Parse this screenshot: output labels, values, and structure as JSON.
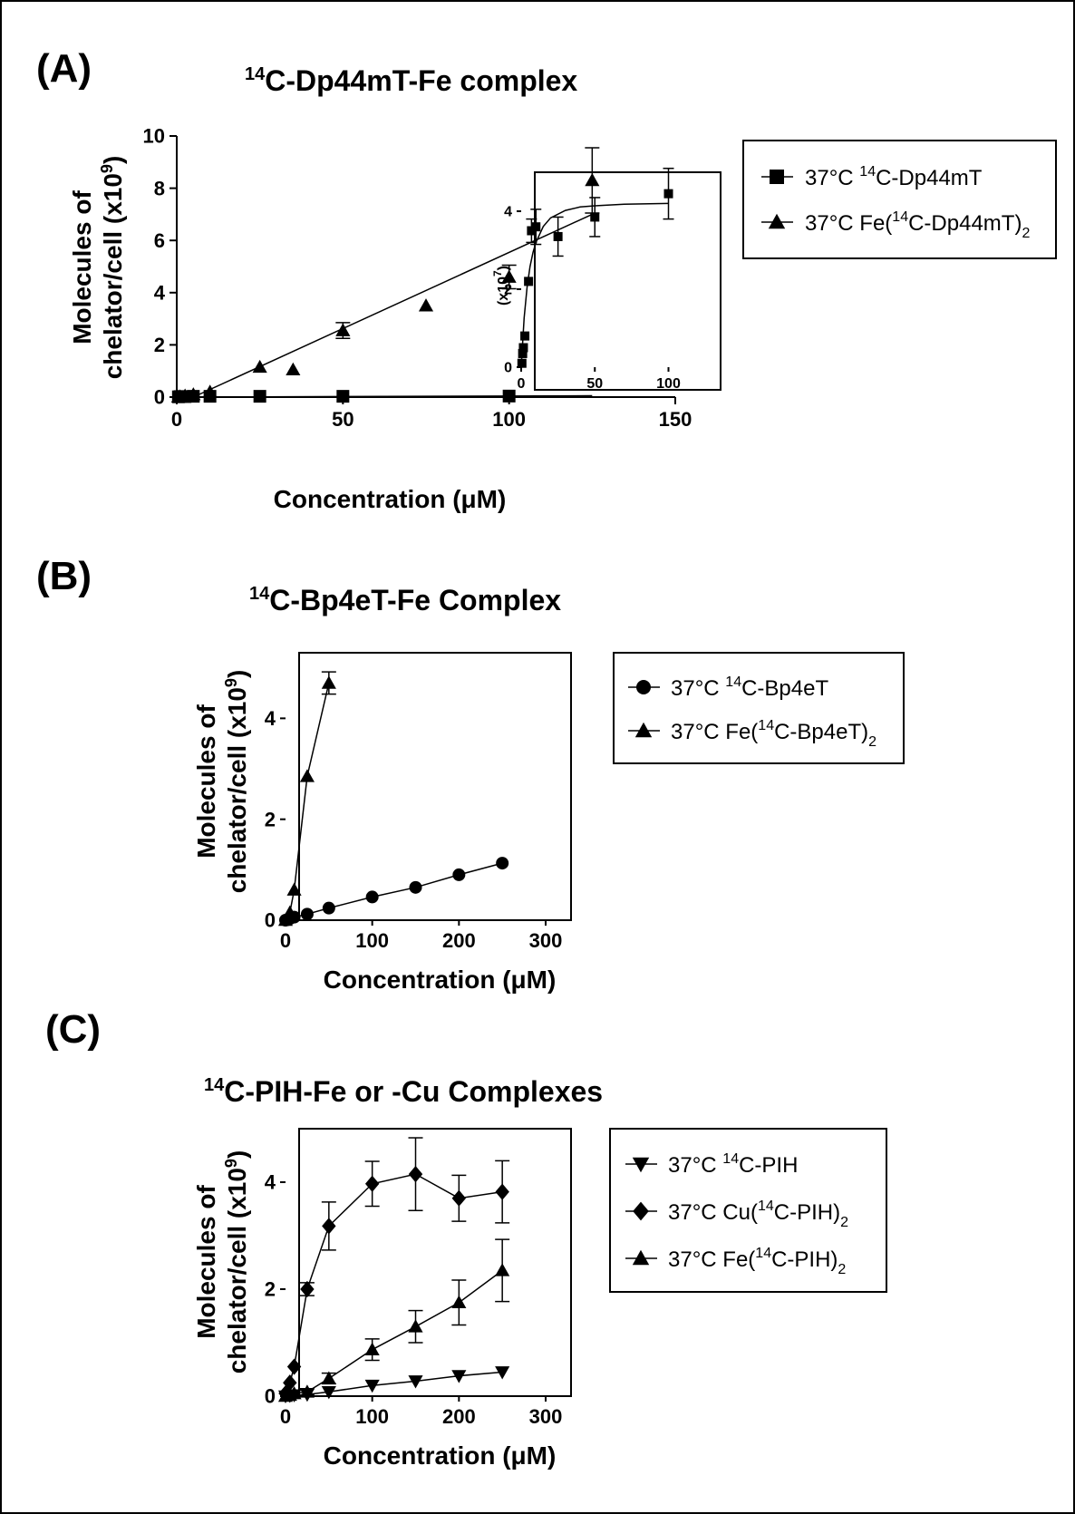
{
  "chart_data": [
    {
      "panel": "(A)",
      "type": "scatter",
      "title": {
        "pre": "14",
        "main": "C-Dp44mT-Fe complex"
      },
      "xlabel": "Concentration (μM)",
      "ylabel_line1": "Molecules of",
      "ylabel_line2": "chelator/cell (x10",
      "ylabel_exp": "9",
      "ylabel_end": ")",
      "xlim": [
        0,
        150
      ],
      "ylim": [
        0,
        10
      ],
      "xticks": [
        0,
        50,
        100,
        150
      ],
      "yticks": [
        0,
        2,
        4,
        6,
        8,
        10
      ],
      "series": [
        {
          "marker": "square",
          "legend": {
            "a": "37°C ",
            "sup1": "14",
            "b": "C-Dp44mT",
            "sub": "",
            "c": ""
          },
          "points": [
            [
              0.5,
              0.01
            ],
            [
              1,
              0.02
            ],
            [
              2.5,
              0.02
            ],
            [
              5,
              0.03
            ],
            [
              10,
              0.03
            ],
            [
              25,
              0.03
            ],
            [
              50,
              0.03
            ],
            [
              100,
              0.04
            ]
          ],
          "errors": [
            0,
            0,
            0,
            0,
            0,
            0,
            0,
            0
          ],
          "fit": [
            [
              0,
              0
            ],
            [
              125,
              0.05
            ]
          ]
        },
        {
          "marker": "triangle-up",
          "legend": {
            "a": "37°C Fe(",
            "sup1": "14",
            "b": "C-Dp44mT)",
            "sub": "2",
            "c": ""
          },
          "points": [
            [
              0.5,
              0.01
            ],
            [
              1,
              0.02
            ],
            [
              2.5,
              0.05
            ],
            [
              5,
              0.1
            ],
            [
              10,
              0.2
            ],
            [
              25,
              1.15
            ],
            [
              35,
              1.05
            ],
            [
              50,
              2.55
            ],
            [
              75,
              3.5
            ],
            [
              100,
              4.6
            ],
            [
              125,
              8.3
            ]
          ],
          "errors": [
            0,
            0,
            0,
            0,
            0,
            0,
            0,
            0.3,
            0,
            0.45,
            1.25
          ],
          "fit": [
            [
              5,
              0
            ],
            [
              125,
              7.0
            ]
          ]
        }
      ],
      "inset": {
        "ylabel": "(x10",
        "ylabel_exp": "7",
        "ylabel_end": ")",
        "xlim": [
          0,
          120
        ],
        "ylim": [
          0,
          5
        ],
        "xticks": [
          0,
          50,
          100
        ],
        "yticks": [
          0,
          2,
          4
        ],
        "series": [
          {
            "marker": "square",
            "points": [
              [
                0.5,
                0.1
              ],
              [
                1,
                0.35
              ],
              [
                1.5,
                0.5
              ],
              [
                2.5,
                0.8
              ],
              [
                5,
                2.2
              ],
              [
                7,
                3.5
              ],
              [
                10,
                3.6
              ],
              [
                25,
                3.35
              ],
              [
                50,
                3.85
              ],
              [
                100,
                4.45
              ]
            ],
            "errors": [
              0,
              0,
              0,
              0,
              0,
              0.3,
              0.45,
              0.5,
              0.5,
              0.65
            ],
            "fit": [
              [
                0,
                0
              ],
              [
                2,
                1.26
              ],
              [
                4,
                2.05
              ],
              [
                6,
                2.58
              ],
              [
                8,
                2.94
              ],
              [
                10,
                3.2
              ],
              [
                15,
                3.61
              ],
              [
                20,
                3.83
              ],
              [
                30,
                4.02
              ],
              [
                40,
                4.11
              ],
              [
                50,
                4.14
              ],
              [
                70,
                4.18
              ],
              [
                100,
                4.2
              ]
            ]
          }
        ]
      }
    },
    {
      "panel": "(B)",
      "type": "line",
      "title": {
        "pre": "14",
        "main": "C-Bp4eT-Fe Complex"
      },
      "xlabel": "Concentration (μM)",
      "ylabel_line1": "Molecules of",
      "ylabel_line2": "chelator/cell (x10",
      "ylabel_exp": "9",
      "ylabel_end": ")",
      "xlim": [
        0,
        300
      ],
      "ylim": [
        0,
        5.3
      ],
      "xticks": [
        0,
        100,
        200,
        300
      ],
      "yticks": [
        0,
        2,
        4
      ],
      "series": [
        {
          "marker": "circle",
          "legend": {
            "a": "37°C ",
            "sup1": "14",
            "b": "C-Bp4eT",
            "sub": "",
            "c": ""
          },
          "points": [
            [
              0,
              0
            ],
            [
              2.5,
              0.01
            ],
            [
              5,
              0.03
            ],
            [
              10,
              0.06
            ],
            [
              25,
              0.12
            ],
            [
              50,
              0.24
            ],
            [
              100,
              0.46
            ],
            [
              150,
              0.65
            ],
            [
              200,
              0.9
            ],
            [
              250,
              1.13
            ]
          ],
          "errors": [
            0,
            0,
            0,
            0,
            0,
            0,
            0,
            0,
            0,
            0
          ]
        },
        {
          "marker": "triangle-up",
          "legend": {
            "a": "37°C Fe(",
            "sup1": "14",
            "b": "C-Bp4eT)",
            "sub": "2",
            "c": ""
          },
          "points": [
            [
              0,
              0
            ],
            [
              2.5,
              0.05
            ],
            [
              5,
              0.15
            ],
            [
              10,
              0.6
            ],
            [
              25,
              2.85
            ],
            [
              50,
              4.7
            ]
          ],
          "errors": [
            0,
            0,
            0,
            0,
            0,
            0.22
          ]
        }
      ]
    },
    {
      "panel": "(C)",
      "type": "line",
      "title": {
        "pre": "14",
        "main": "C-PIH-Fe or -Cu Complexes"
      },
      "xlabel": "Concentration (μM)",
      "ylabel_line1": "Molecules of",
      "ylabel_line2": "chelator/cell (x10",
      "ylabel_exp": "9",
      "ylabel_end": ")",
      "xlim": [
        0,
        300
      ],
      "ylim": [
        0,
        5.0
      ],
      "xticks": [
        0,
        100,
        200,
        300
      ],
      "yticks": [
        0,
        2,
        4
      ],
      "series": [
        {
          "marker": "triangle-down",
          "legend": {
            "a": "37°C ",
            "sup1": "14",
            "b": "C-PIH",
            "sub": "",
            "c": ""
          },
          "points": [
            [
              0,
              0
            ],
            [
              5,
              0.01
            ],
            [
              10,
              0.02
            ],
            [
              25,
              0.03
            ],
            [
              50,
              0.08
            ],
            [
              100,
              0.2
            ],
            [
              150,
              0.28
            ],
            [
              200,
              0.38
            ],
            [
              250,
              0.45
            ]
          ],
          "errors": [
            0,
            0,
            0,
            0,
            0,
            0,
            0,
            0,
            0
          ]
        },
        {
          "marker": "diamond",
          "legend": {
            "a": "37°C Cu(",
            "sup1": "14",
            "b": "C-PIH)",
            "sub": "2",
            "c": ""
          },
          "points": [
            [
              0,
              0.05
            ],
            [
              5,
              0.25
            ],
            [
              10,
              0.55
            ],
            [
              25,
              2.0
            ],
            [
              50,
              3.18
            ],
            [
              100,
              3.97
            ],
            [
              150,
              4.15
            ],
            [
              200,
              3.7
            ],
            [
              250,
              3.82
            ]
          ],
          "errors": [
            0,
            0,
            0,
            0.12,
            0.45,
            0.42,
            0.68,
            0.43,
            0.58
          ]
        },
        {
          "marker": "triangle-up",
          "legend": {
            "a": "37°C Fe(",
            "sup1": "14",
            "b": "C-PIH)",
            "sub": "2",
            "c": ""
          },
          "points": [
            [
              0,
              0
            ],
            [
              5,
              0.02
            ],
            [
              10,
              0.05
            ],
            [
              25,
              0.08
            ],
            [
              50,
              0.33
            ],
            [
              100,
              0.87
            ],
            [
              150,
              1.3
            ],
            [
              200,
              1.75
            ],
            [
              250,
              2.35
            ]
          ],
          "errors": [
            0,
            0,
            0,
            0.06,
            0.1,
            0.2,
            0.3,
            0.42,
            0.58
          ]
        }
      ]
    }
  ]
}
